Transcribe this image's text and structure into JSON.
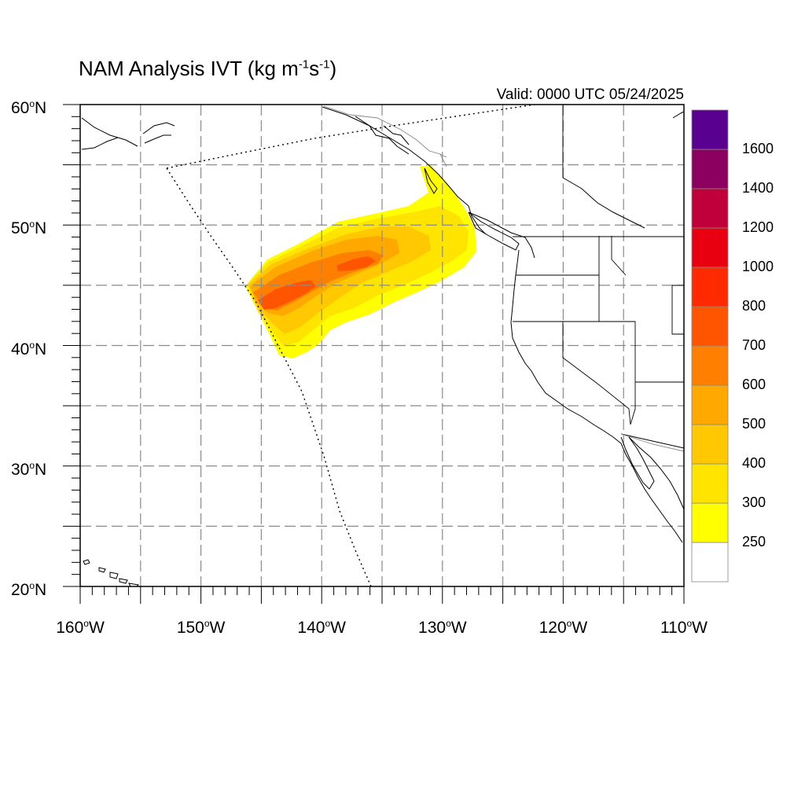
{
  "title": {
    "main": "NAM Analysis IVT (kg m",
    "sup1": "-1",
    "mid": "s",
    "sup2": "-1",
    "end": ")"
  },
  "valid": "Valid: 0000 UTC 05/24/2025",
  "axes": {
    "lat_labels": [
      {
        "value": 60,
        "deg": "o",
        "text": "60",
        "hemi": "N"
      },
      {
        "value": 50,
        "deg": "o",
        "text": "50",
        "hemi": "N"
      },
      {
        "value": 40,
        "deg": "o",
        "text": "40",
        "hemi": "N"
      },
      {
        "value": 30,
        "deg": "o",
        "text": "30",
        "hemi": "N"
      },
      {
        "value": 20,
        "deg": "o",
        "text": "20",
        "hemi": "N"
      }
    ],
    "lon_labels": [
      {
        "value": -160,
        "text": "160",
        "deg": "o",
        "hemi": "W"
      },
      {
        "value": -150,
        "text": "150",
        "deg": "o",
        "hemi": "W"
      },
      {
        "value": -140,
        "text": "140",
        "deg": "o",
        "hemi": "W"
      },
      {
        "value": -130,
        "text": "130",
        "deg": "o",
        "hemi": "W"
      },
      {
        "value": -120,
        "text": "120",
        "deg": "o",
        "hemi": "W"
      },
      {
        "value": -110,
        "text": "110",
        "deg": "o",
        "hemi": "W"
      }
    ],
    "lon_range": [
      -160,
      -110
    ],
    "lat_range": [
      20,
      60
    ]
  },
  "colorbar": {
    "levels": [
      {
        "color": "#ffffff"
      },
      {
        "color": "#ffff00",
        "label": "250"
      },
      {
        "color": "#ffe400",
        "label": "300"
      },
      {
        "color": "#ffc800",
        "label": "400"
      },
      {
        "color": "#ffa800",
        "label": "500"
      },
      {
        "color": "#ff8000",
        "label": "600"
      },
      {
        "color": "#ff5500",
        "label": "700"
      },
      {
        "color": "#ff2a00",
        "label": "800"
      },
      {
        "color": "#e80010",
        "label": "1000"
      },
      {
        "color": "#c0003a",
        "label": "1200"
      },
      {
        "color": "#8c0060",
        "label": "1400"
      },
      {
        "color": "#5a0090",
        "label": "1600"
      }
    ]
  }
}
